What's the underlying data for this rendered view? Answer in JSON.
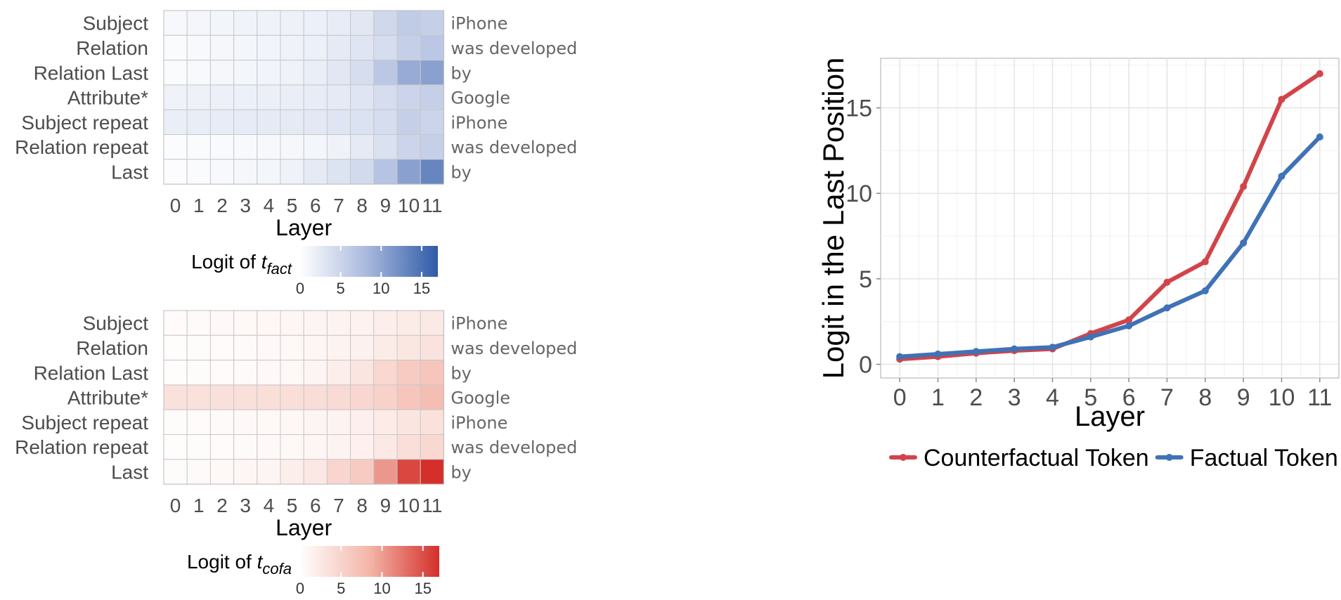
{
  "chart_data": [
    {
      "type": "heatmap",
      "rows": [
        "Subject",
        "Relation",
        "Relation Last",
        "Attribute*",
        "Subject repeat",
        "Relation repeat",
        "Last"
      ],
      "row_tokens": [
        "iPhone",
        "was developed",
        "by",
        "Google",
        "iPhone",
        "was developed",
        "by"
      ],
      "columns": [
        "0",
        "1",
        "2",
        "3",
        "4",
        "5",
        "6",
        "7",
        "8",
        "9",
        "10",
        "11"
      ],
      "xlabel": "Layer",
      "colorbar": {
        "label_prefix": "Logit of ",
        "label_var": "t",
        "label_sub": "fact",
        "ticks": [
          0,
          5,
          10,
          15
        ],
        "range": [
          0,
          17
        ]
      },
      "colors": {
        "low": "#ffffff",
        "mid": "#a6b6dc",
        "high": "#2f5ba8"
      },
      "values": [
        [
          0.8,
          1.0,
          1.2,
          1.4,
          1.5,
          1.6,
          1.8,
          2.2,
          2.8,
          4.5,
          6.0,
          5.5
        ],
        [
          0.5,
          0.7,
          0.9,
          1.1,
          1.3,
          1.5,
          1.8,
          2.5,
          3.0,
          4.0,
          5.5,
          6.5
        ],
        [
          0.5,
          0.7,
          0.9,
          1.1,
          1.3,
          1.5,
          2.0,
          2.8,
          4.0,
          6.5,
          9.5,
          10.5
        ],
        [
          1.5,
          1.6,
          1.7,
          1.8,
          1.9,
          2.0,
          2.2,
          2.5,
          3.0,
          4.0,
          5.0,
          5.5
        ],
        [
          2.0,
          2.1,
          2.2,
          2.3,
          2.4,
          2.5,
          2.7,
          3.0,
          3.4,
          4.0,
          5.5,
          5.0
        ],
        [
          0.4,
          0.5,
          0.6,
          0.7,
          0.8,
          0.9,
          1.1,
          1.5,
          2.5,
          3.5,
          5.0,
          5.5
        ],
        [
          0.3,
          0.5,
          0.7,
          0.9,
          1.1,
          1.5,
          2.5,
          3.3,
          4.3,
          7.0,
          10.5,
          13.0
        ]
      ]
    },
    {
      "type": "heatmap",
      "rows": [
        "Subject",
        "Relation",
        "Relation Last",
        "Attribute*",
        "Subject repeat",
        "Relation repeat",
        "Last"
      ],
      "row_tokens": [
        "iPhone",
        "was developed",
        "by",
        "Google",
        "iPhone",
        "was developed",
        "by"
      ],
      "columns": [
        "0",
        "1",
        "2",
        "3",
        "4",
        "5",
        "6",
        "7",
        "8",
        "9",
        "10",
        "11"
      ],
      "xlabel": "Layer",
      "colorbar": {
        "label_prefix": "Logit of ",
        "label_var": "t",
        "label_sub": "cofa",
        "ticks": [
          0,
          5,
          10,
          15
        ],
        "range": [
          0,
          17
        ]
      },
      "colors": {
        "low": "#ffffff",
        "mid": "#f3b5a8",
        "high": "#d42f2a"
      },
      "values": [
        [
          0.5,
          0.6,
          0.7,
          0.8,
          0.9,
          1.0,
          1.1,
          1.3,
          1.5,
          2.0,
          2.2,
          2.5
        ],
        [
          0.3,
          0.4,
          0.5,
          0.6,
          0.7,
          0.8,
          1.0,
          1.3,
          1.6,
          2.2,
          2.8,
          3.2
        ],
        [
          0.3,
          0.4,
          0.5,
          0.6,
          0.7,
          0.8,
          1.2,
          2.0,
          3.0,
          4.5,
          6.0,
          6.5
        ],
        [
          3.5,
          3.5,
          3.6,
          3.6,
          3.7,
          3.7,
          3.9,
          4.2,
          4.6,
          5.2,
          6.5,
          7.5
        ],
        [
          0.4,
          0.5,
          0.6,
          0.7,
          0.8,
          0.9,
          1.1,
          1.4,
          1.8,
          2.3,
          3.0,
          3.5
        ],
        [
          0.3,
          0.4,
          0.5,
          0.6,
          0.7,
          0.8,
          1.0,
          1.3,
          1.7,
          2.5,
          3.8,
          4.5
        ],
        [
          0.4,
          0.6,
          0.8,
          1.0,
          1.2,
          2.0,
          2.6,
          4.8,
          6.0,
          10.4,
          15.5,
          17.0
        ]
      ]
    },
    {
      "type": "line",
      "x": [
        0,
        1,
        2,
        3,
        4,
        5,
        6,
        7,
        8,
        9,
        10,
        11
      ],
      "xlabel": "Layer",
      "ylabel": "Logit in the Last Position",
      "ylim": [
        -0.8,
        17.9
      ],
      "yticks": [
        0,
        5,
        10,
        15
      ],
      "xlim": [
        -0.5,
        11.5
      ],
      "grid": true,
      "legend": "bottom",
      "series": [
        {
          "name": "Counterfactual Token",
          "color": "#d2444a",
          "values": [
            0.3,
            0.45,
            0.65,
            0.8,
            0.9,
            1.8,
            2.6,
            4.8,
            6.0,
            10.4,
            15.5,
            17.0
          ]
        },
        {
          "name": "Factual Token",
          "color": "#3f72b6",
          "values": [
            0.45,
            0.6,
            0.75,
            0.9,
            1.0,
            1.6,
            2.25,
            3.3,
            4.3,
            7.1,
            11.0,
            13.3
          ]
        }
      ]
    }
  ]
}
